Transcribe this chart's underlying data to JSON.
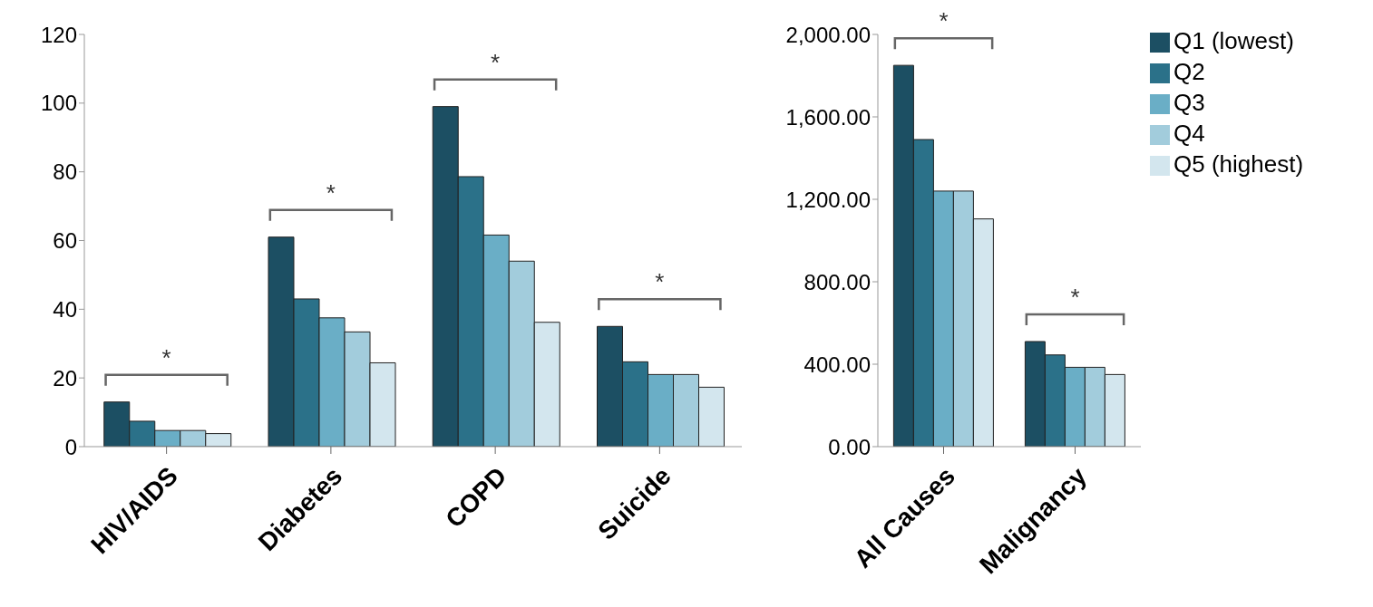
{
  "chart_data": [
    {
      "type": "bar",
      "categories": [
        "HIV/AIDS",
        "Diabetes",
        "COPD",
        "Suicide"
      ],
      "series": [
        {
          "color": "#1c4f63",
          "values": [
            13,
            61,
            99,
            35
          ]
        },
        {
          "color": "#2b7189",
          "values": [
            7.4,
            43,
            78.6,
            24.7
          ]
        },
        {
          "color": "#6aaec6",
          "values": [
            4.7,
            37.5,
            61.6,
            21
          ]
        },
        {
          "color": "#a2ccdc",
          "values": [
            4.7,
            33.4,
            54,
            21
          ]
        },
        {
          "color": "#d3e6ee",
          "values": [
            3.8,
            24.4,
            36.2,
            17.3
          ]
        }
      ],
      "ylim": [
        0,
        120
      ],
      "yticks": [
        0,
        20,
        40,
        60,
        80,
        100,
        120
      ],
      "grid": false,
      "legend": false,
      "annotations": [
        "*",
        "*",
        "*",
        "*"
      ]
    },
    {
      "type": "bar",
      "categories": [
        "All Causes",
        "Malignancy"
      ],
      "series": [
        {
          "name": "Q1 (lowest)",
          "color": "#1c4f63",
          "values": [
            1850,
            510
          ]
        },
        {
          "name": "Q2",
          "color": "#2b7189",
          "values": [
            1490,
            445
          ]
        },
        {
          "name": "Q3",
          "color": "#6aaec6",
          "values": [
            1240,
            385
          ]
        },
        {
          "name": "Q4",
          "color": "#a2ccdc",
          "values": [
            1240,
            385
          ]
        },
        {
          "name": "Q5 (highest)",
          "color": "#d3e6ee",
          "values": [
            1105,
            350
          ]
        }
      ],
      "ylim": [
        0,
        2000
      ],
      "yticks": [
        {
          "value": 0,
          "label": "0.00"
        },
        {
          "value": 400,
          "label": "400.00"
        },
        {
          "value": 800,
          "label": "800.00"
        },
        {
          "value": 1200,
          "label": "1,200.00"
        },
        {
          "value": 1600,
          "label": "1,600.00"
        },
        {
          "value": 2000,
          "label": "2,000.00"
        }
      ],
      "grid": false,
      "legend": "top right",
      "annotations": [
        "*",
        "*"
      ]
    }
  ]
}
